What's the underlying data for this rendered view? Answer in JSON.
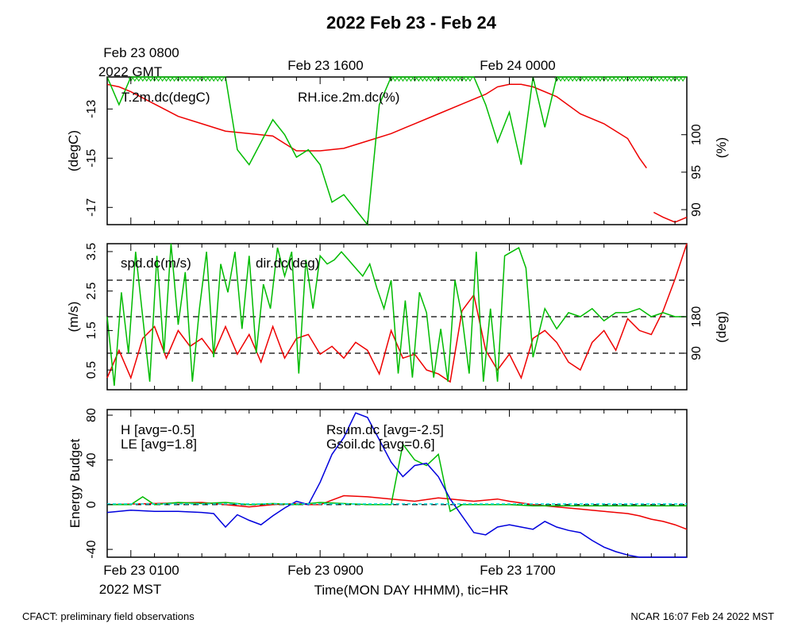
{
  "title": "2022 Feb 23 - Feb 24",
  "top_time_labels": {
    "gmt_first": "Feb 23 0800",
    "gmt_first_year": "2022 GMT",
    "gmt_second": "Feb 23 1600",
    "gmt_third": "Feb 24 0000"
  },
  "bottom_time_labels": {
    "mst_first": "Feb 23 0100",
    "mst_first_year": "2022 MST",
    "mst_second": "Feb 23 0900",
    "mst_third": "Feb 23 1700"
  },
  "xlabel": "Time(MON DAY HHMM), tic=HR",
  "footer_left": "CFACT: preliminary field observations",
  "footer_right": "NCAR 16:07 Feb 24 2022 MST",
  "colors": {
    "red": "#ee0000",
    "green": "#00bb00",
    "blue": "#0000dd",
    "cyan": "#00dddd",
    "black": "#000000"
  },
  "chart_data": [
    {
      "type": "line",
      "name": "temperature-humidity",
      "x_range_hours_mst": [
        0,
        24.5
      ],
      "left_axis": {
        "label": "(degC)",
        "ylim": [
          -17.7,
          -11.7
        ],
        "ticks": [
          "-13",
          "-15",
          "-17"
        ],
        "tick_values": [
          -13,
          -15,
          -17
        ]
      },
      "right_axis": {
        "label": "(%)",
        "ylim": [
          88,
          107.7
        ],
        "ticks": [
          "100",
          "95",
          "90"
        ],
        "tick_values": [
          100,
          95,
          90
        ]
      },
      "series": [
        {
          "name": "T.2m.dc",
          "legend": "T.2m.dc(degC)",
          "color": "red",
          "axis": "left",
          "x": [
            0,
            0.5,
            1,
            2,
            3,
            4,
            5,
            6,
            7,
            7.5,
            8,
            9,
            10,
            11,
            12,
            13,
            14,
            15,
            16,
            16.5,
            17,
            17.5,
            18,
            19,
            20,
            21,
            22,
            22.5,
            22.8,
            null,
            23.1,
            23.5,
            24,
            24.5
          ],
          "values": [
            -12,
            -12.1,
            -12.3,
            -12.8,
            -13.3,
            -13.6,
            -13.9,
            -14.0,
            -14.1,
            -14.4,
            -14.7,
            -14.7,
            -14.6,
            -14.3,
            -14.0,
            -13.6,
            -13.2,
            -12.8,
            -12.4,
            -12.1,
            -12.0,
            -12.0,
            -12.1,
            -12.5,
            -13.2,
            -13.6,
            -14.2,
            -15.0,
            -15.4,
            null,
            -17.2,
            -17.4,
            -17.6,
            -17.4
          ]
        },
        {
          "name": "RH.ice.2m.dc",
          "legend": "RH.ice.2m.dc(%)",
          "color": "green",
          "axis": "right",
          "x": [
            0,
            0.5,
            1,
            2,
            3,
            4,
            5,
            5.5,
            6,
            6.5,
            7,
            7.5,
            8,
            8.5,
            9,
            9.5,
            10,
            10.5,
            11,
            11.5,
            12,
            12.5,
            13,
            14,
            15,
            15.5,
            16,
            16.5,
            17,
            17.5,
            18,
            18.5,
            19,
            20,
            21,
            22,
            23,
            24,
            24.5
          ],
          "values": [
            107.7,
            104,
            107.7,
            107.7,
            107.7,
            107.7,
            107.7,
            98,
            96,
            99,
            102,
            100,
            97,
            98,
            96,
            91,
            92,
            90,
            88,
            104,
            107.7,
            107.7,
            107.7,
            107.7,
            107.7,
            107.7,
            104,
            99,
            103,
            96,
            107.7,
            101,
            107.7,
            107.7,
            107.7,
            107.7,
            107.7,
            107.7,
            107.7
          ]
        }
      ]
    },
    {
      "type": "line",
      "name": "wind",
      "x_range_hours_mst": [
        0,
        24.5
      ],
      "left_axis": {
        "label": "(m/s)",
        "ylim": [
          0,
          3.7
        ],
        "ticks": [
          "0.5",
          "1.5",
          "2.5",
          "3.5"
        ],
        "tick_values": [
          0.5,
          1.5,
          2.5,
          3.5
        ]
      },
      "right_axis": {
        "label": "(deg)",
        "ylim": [
          0,
          360
        ],
        "ticks": [
          "90",
          "180"
        ],
        "tick_values": [
          90,
          180
        ]
      },
      "reference_lines_deg": [
        90,
        180,
        270
      ],
      "series": [
        {
          "name": "spd.dc",
          "legend": "spd.dc(m/s)",
          "color": "red",
          "axis": "left",
          "x": [
            0,
            0.5,
            1,
            1.5,
            2,
            2.5,
            3,
            3.5,
            4,
            4.5,
            5,
            5.5,
            6,
            6.5,
            7,
            7.5,
            8,
            8.5,
            9,
            9.5,
            10,
            10.5,
            11,
            11.5,
            12,
            12.5,
            13,
            13.5,
            14,
            14.5,
            15,
            15.5,
            16,
            16.5,
            17,
            17.5,
            18,
            18.5,
            19,
            19.5,
            20,
            20.5,
            21,
            21.5,
            22,
            22.5,
            23,
            23.5,
            24,
            24.5
          ],
          "values": [
            0.3,
            1.0,
            0.3,
            1.3,
            1.6,
            0.8,
            1.5,
            1.1,
            1.3,
            0.9,
            1.6,
            0.9,
            1.4,
            0.7,
            1.6,
            0.8,
            1.3,
            1.4,
            0.9,
            1.1,
            0.8,
            1.2,
            1.0,
            0.4,
            1.5,
            0.8,
            0.9,
            0.5,
            0.4,
            0.2,
            2.0,
            2.4,
            1.0,
            0.5,
            0.9,
            0.3,
            1.3,
            1.5,
            1.2,
            0.7,
            0.5,
            1.2,
            1.5,
            1.0,
            1.8,
            1.5,
            1.4,
            2.0,
            2.8,
            3.7
          ]
        },
        {
          "name": "dir.dc",
          "legend": "dir.dc(deg)",
          "color": "green",
          "axis": "right",
          "x": [
            0,
            0.3,
            0.6,
            0.9,
            1.2,
            1.5,
            1.8,
            2.1,
            2.4,
            2.7,
            3.0,
            3.3,
            3.6,
            3.9,
            4.2,
            4.5,
            4.8,
            5.1,
            5.4,
            5.7,
            6.0,
            6.3,
            6.6,
            6.9,
            7.2,
            7.5,
            7.8,
            8.1,
            8.4,
            8.7,
            9.0,
            9.3,
            9.6,
            9.9,
            10.2,
            10.5,
            10.8,
            11.1,
            11.4,
            11.7,
            12.0,
            12.3,
            12.6,
            12.9,
            13.2,
            13.5,
            13.8,
            14.1,
            14.4,
            14.7,
            15.0,
            15.3,
            15.6,
            15.9,
            16.2,
            16.5,
            16.8,
            17.1,
            17.4,
            17.7,
            18.0,
            18.5,
            19,
            19.5,
            20,
            20.5,
            21,
            21.5,
            22,
            22.5,
            23,
            23.5,
            24,
            24.5
          ],
          "values": [
            180,
            10,
            240,
            90,
            340,
            180,
            20,
            330,
            90,
            360,
            160,
            290,
            20,
            200,
            340,
            80,
            310,
            240,
            340,
            150,
            330,
            90,
            260,
            200,
            350,
            280,
            340,
            40,
            320,
            200,
            330,
            310,
            320,
            340,
            320,
            300,
            280,
            310,
            250,
            200,
            270,
            40,
            220,
            30,
            240,
            190,
            30,
            150,
            20,
            270,
            180,
            40,
            340,
            20,
            200,
            20,
            330,
            340,
            350,
            300,
            80,
            200,
            150,
            190,
            180,
            200,
            170,
            190,
            190,
            200,
            180,
            190,
            180,
            180
          ]
        }
      ]
    },
    {
      "type": "line",
      "name": "energy-budget",
      "x_range_hours_mst": [
        0,
        24.5
      ],
      "ylabel": "Energy Budget",
      "ylim": [
        -47,
        85
      ],
      "ticks": [
        "80",
        "40",
        "0",
        "-40"
      ],
      "tick_values": [
        80,
        40,
        0,
        -40
      ],
      "series": [
        {
          "name": "H",
          "legend": "H [avg=-0.5]",
          "color": "red",
          "x": [
            0,
            2,
            4,
            5,
            6,
            7,
            8,
            8.5,
            9,
            9.5,
            10,
            11,
            12,
            13,
            14,
            15,
            15.5,
            16,
            16.5,
            17,
            18,
            19,
            20,
            21,
            22,
            22.5,
            23,
            23.5,
            24,
            24.5
          ],
          "values": [
            0,
            1,
            2,
            0,
            -2,
            0,
            1,
            0,
            0,
            4,
            8,
            7,
            5,
            3,
            6,
            4,
            3,
            4,
            5,
            3,
            0,
            -2,
            -4,
            -6,
            -8,
            -10,
            -13,
            -15,
            -18,
            -22
          ]
        },
        {
          "name": "LE",
          "legend": "LE [avg=1.8]",
          "color": "green",
          "x": [
            0,
            1,
            1.5,
            2,
            3,
            4,
            5,
            6,
            7,
            8,
            9,
            10,
            11,
            12,
            12.5,
            13,
            13.5,
            14,
            14.5,
            15,
            16,
            17,
            18,
            19,
            20,
            21,
            22,
            23,
            24,
            24.5
          ],
          "values": [
            0,
            0,
            7,
            0,
            2,
            1,
            2,
            0,
            1,
            0,
            2,
            1,
            0,
            0,
            54,
            40,
            35,
            45,
            -6,
            0,
            0,
            0,
            -1,
            -1,
            -1,
            -1,
            -1,
            -1,
            -1,
            -1
          ]
        },
        {
          "name": "Rsum.dc",
          "legend": "Rsum.dc [avg=-2.5]",
          "color": "blue",
          "x": [
            0,
            1,
            2,
            3,
            4,
            4.5,
            5,
            5.5,
            6,
            6.5,
            7,
            7.5,
            8,
            8.5,
            9,
            9.5,
            10,
            10.5,
            11,
            11.5,
            12,
            12.5,
            13,
            13.5,
            14,
            14.5,
            15,
            15.5,
            16,
            16.5,
            17,
            17.5,
            18,
            18.5,
            19,
            19.5,
            20,
            20.5,
            21,
            21.5,
            22,
            22.5,
            23,
            23.5,
            24,
            24.5
          ],
          "values": [
            -7,
            -5,
            -6,
            -6,
            -7,
            -8,
            -20,
            -9,
            -14,
            -18,
            -10,
            -3,
            3,
            0,
            20,
            45,
            60,
            82,
            78,
            58,
            38,
            25,
            35,
            37,
            25,
            5,
            -10,
            -25,
            -27,
            -20,
            -18,
            -20,
            -22,
            -15,
            -20,
            -23,
            -25,
            -32,
            -38,
            -42,
            -45,
            -48,
            -51,
            -52,
            -49,
            -52
          ]
        },
        {
          "name": "Gsoil.dc",
          "legend": "Gsoil.dc [avg=0.6]",
          "color": "cyan",
          "x": [
            0,
            24.5
          ],
          "values": [
            0.6,
            0.6
          ]
        }
      ]
    }
  ]
}
